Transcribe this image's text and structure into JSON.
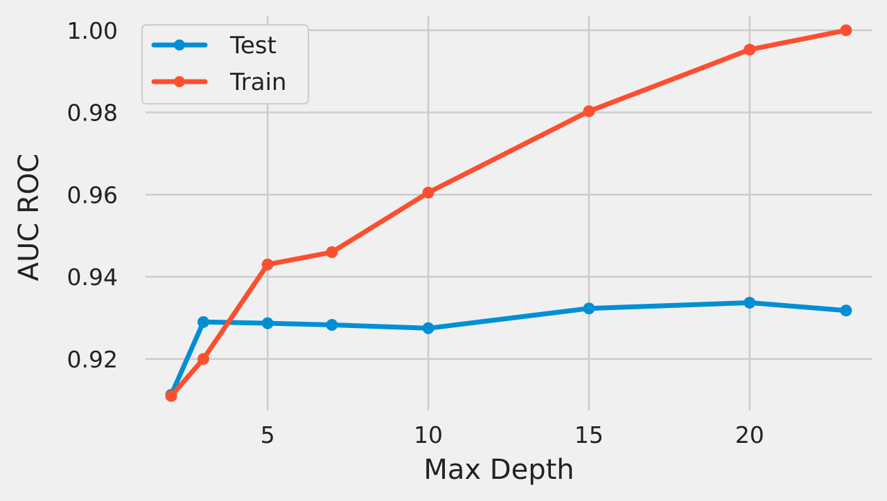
{
  "chart_data": {
    "type": "line",
    "title": "",
    "xlabel": "Max Depth",
    "ylabel": "AUC ROC",
    "xlim": [
      1.2,
      23.8
    ],
    "ylim": [
      0.9075,
      1.0035
    ],
    "x_ticks": [
      5,
      10,
      15,
      20
    ],
    "y_ticks": [
      0.92,
      0.94,
      0.96,
      0.98,
      1.0
    ],
    "y_tick_labels": [
      "0.92",
      "0.94",
      "0.96",
      "0.98",
      "1.00"
    ],
    "grid": true,
    "legend_position": "top-left",
    "x": [
      2,
      3,
      5,
      7,
      10,
      15,
      20,
      23
    ],
    "series": [
      {
        "name": "Test",
        "color": "#008fd5",
        "values": [
          0.9113,
          0.929,
          0.9287,
          0.9283,
          0.9275,
          0.9323,
          0.9337,
          0.9318
        ]
      },
      {
        "name": "Train",
        "color": "#fc4f30",
        "values": [
          0.911,
          0.92,
          0.943,
          0.946,
          0.9605,
          0.9803,
          0.9953,
          1.0
        ]
      }
    ]
  }
}
